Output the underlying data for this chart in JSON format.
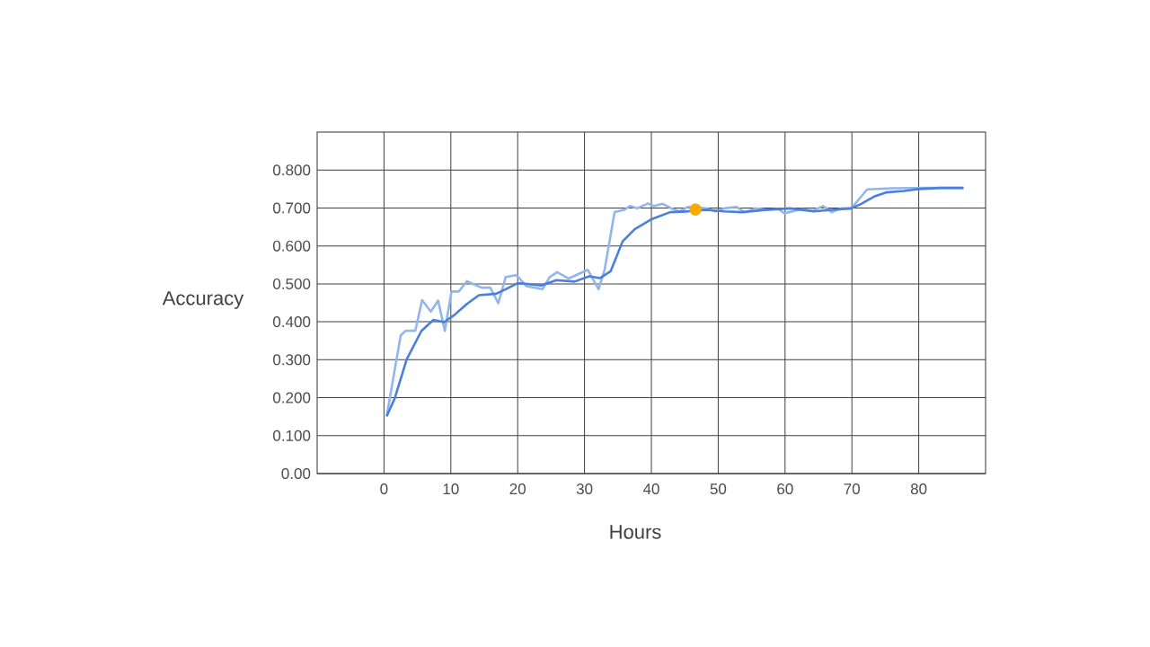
{
  "chart_data": {
    "type": "line",
    "xlabel": "Hours",
    "ylabel": "Accuracy",
    "xlim": [
      -10,
      90
    ],
    "ylim": [
      0,
      0.9
    ],
    "xticks": [
      0,
      10,
      20,
      30,
      40,
      50,
      60,
      70,
      80
    ],
    "yticks": [
      {
        "value": 0,
        "label": "0.00"
      },
      {
        "value": 0.1,
        "label": "0.100"
      },
      {
        "value": 0.2,
        "label": "0.200"
      },
      {
        "value": 0.3,
        "label": "0.300"
      },
      {
        "value": 0.4,
        "label": "0.400"
      },
      {
        "value": 0.5,
        "label": "0.500"
      },
      {
        "value": 0.6,
        "label": "0.600"
      },
      {
        "value": 0.7,
        "label": "0.700"
      },
      {
        "value": 0.8,
        "label": "0.800"
      }
    ],
    "grid": true,
    "legend": false,
    "marker": "none",
    "line_style": "solid",
    "series": [
      {
        "color": "#93b5ee",
        "x": [
          0.4,
          2.5,
          3.2,
          4.7,
          5.7,
          7.0,
          8.1,
          9.1,
          10.1,
          11.2,
          12.4,
          14.6,
          15.9,
          17.1,
          18.2,
          19.8,
          21.3,
          23.7,
          24.8,
          25.9,
          27.6,
          30.5,
          32.1,
          33.0,
          34.5,
          35.9,
          36.8,
          37.9,
          39.5,
          40.4,
          41.7,
          43.0,
          44.2,
          45.5,
          46.9,
          48.2,
          49.6,
          50.9,
          52.7,
          54.0,
          55.6,
          57.2,
          59.0,
          59.9,
          62.5,
          64.1,
          65.7,
          67.0,
          68.4,
          69.9,
          72.3,
          76.0,
          80.5,
          86.7
        ],
        "values": [
          0.151,
          0.364,
          0.376,
          0.377,
          0.457,
          0.427,
          0.456,
          0.376,
          0.48,
          0.48,
          0.507,
          0.49,
          0.49,
          0.449,
          0.518,
          0.523,
          0.494,
          0.486,
          0.518,
          0.531,
          0.514,
          0.537,
          0.486,
          0.537,
          0.689,
          0.695,
          0.705,
          0.699,
          0.712,
          0.705,
          0.711,
          0.699,
          0.691,
          0.703,
          null,
          0.699,
          0.691,
          0.699,
          0.703,
          0.689,
          0.699,
          0.695,
          0.697,
          0.686,
          0.697,
          0.693,
          0.705,
          0.689,
          0.699,
          0.699,
          0.749,
          0.752,
          0.753,
          0.753
        ]
      },
      {
        "color": "#4a7fdc",
        "x": [
          0.4,
          1.6,
          3.4,
          5.6,
          7.4,
          9.0,
          10.6,
          12.4,
          14.2,
          16.8,
          18.2,
          20.0,
          23.6,
          25.8,
          28.5,
          30.7,
          32.3,
          33.9,
          35.7,
          37.5,
          40.1,
          42.8,
          45.5,
          48.2,
          50.9,
          53.6,
          57.2,
          60.8,
          64.3,
          67.0,
          69.9,
          71.4,
          73.3,
          75.1,
          77.8,
          80.0,
          83.2,
          86.7
        ],
        "values": [
          0.151,
          0.198,
          0.301,
          0.376,
          0.405,
          0.399,
          0.419,
          0.447,
          0.47,
          0.474,
          0.486,
          0.502,
          0.496,
          0.51,
          0.506,
          0.52,
          0.515,
          0.533,
          0.612,
          0.644,
          0.671,
          0.689,
          0.691,
          0.695,
          0.691,
          0.689,
          0.695,
          0.699,
          0.691,
          0.695,
          0.699,
          0.711,
          0.73,
          0.741,
          0.745,
          0.75,
          0.753,
          0.753
        ]
      },
      {
        "type": "scatter",
        "marker": "circle",
        "color": "#f9ab00",
        "x": [
          46.6
        ],
        "values": [
          0.696
        ]
      }
    ]
  }
}
